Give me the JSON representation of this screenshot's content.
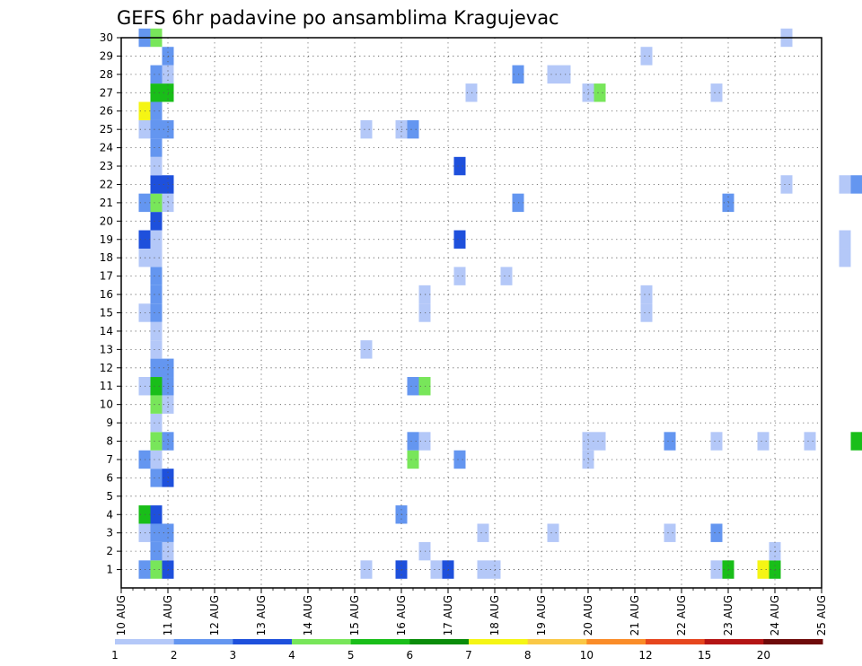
{
  "chart_data": {
    "type": "heatmap",
    "title": "GEFS 6hr padavine po ansamblima Kragujevac",
    "xlabel": "",
    "ylabel": "",
    "x_ticks": [
      "10 AUG",
      "11 AUG",
      "12 AUG",
      "13 AUG",
      "14 AUG",
      "15 AUG",
      "16 AUG",
      "17 AUG",
      "18 AUG",
      "19 AUG",
      "20 AUG",
      "21 AUG",
      "22 AUG",
      "23 AUG",
      "24 AUG",
      "25 AUG"
    ],
    "x_range_days": [
      10,
      25
    ],
    "y_ticks": [
      1,
      2,
      3,
      4,
      5,
      6,
      7,
      8,
      9,
      10,
      11,
      12,
      13,
      14,
      15,
      16,
      17,
      18,
      19,
      20,
      21,
      22,
      23,
      24,
      25,
      26,
      27,
      28,
      29,
      30
    ],
    "y_range": [
      0,
      30
    ],
    "grid": "dotted",
    "legend": {
      "placement": "bottom",
      "levels": [
        "1",
        "2",
        "3",
        "4",
        "5",
        "6",
        "7",
        "8",
        "10",
        "12",
        "15",
        "20"
      ],
      "colors": [
        "#b4c8f8",
        "#6496f0",
        "#1e50dc",
        "#78e65a",
        "#19be19",
        "#0a8c0a",
        "#f5f514",
        "#fac846",
        "#fa8c28",
        "#e6461e",
        "#b41414",
        "#6e0a0a"
      ]
    },
    "cells": [
      {
        "member": 1,
        "time": "10.5",
        "level": 2
      },
      {
        "member": 1,
        "time": "10.75",
        "level": 4
      },
      {
        "member": 1,
        "time": "11.0",
        "level": 3
      },
      {
        "member": 1,
        "time": "15.25",
        "level": 1
      },
      {
        "member": 1,
        "time": "16.0",
        "level": 3
      },
      {
        "member": 1,
        "time": "16.75",
        "level": 1
      },
      {
        "member": 1,
        "time": "17.0",
        "level": 3
      },
      {
        "member": 1,
        "time": "17.75",
        "level": 1
      },
      {
        "member": 1,
        "time": "18.0",
        "level": 1
      },
      {
        "member": 1,
        "time": "22.75",
        "level": 1
      },
      {
        "member": 1,
        "time": "23.0",
        "level": 5
      },
      {
        "member": 1,
        "time": "23.75",
        "level": 7
      },
      {
        "member": 1,
        "time": "24.0",
        "level": 5
      },
      {
        "member": 2,
        "time": "10.75",
        "level": 2
      },
      {
        "member": 2,
        "time": "11.0",
        "level": 1
      },
      {
        "member": 2,
        "time": "16.5",
        "level": 1
      },
      {
        "member": 2,
        "time": "24.0",
        "level": 1
      },
      {
        "member": 3,
        "time": "10.5",
        "level": 1
      },
      {
        "member": 3,
        "time": "10.75",
        "level": 2
      },
      {
        "member": 3,
        "time": "11.0",
        "level": 2
      },
      {
        "member": 3,
        "time": "17.75",
        "level": 1
      },
      {
        "member": 3,
        "time": "19.25",
        "level": 1
      },
      {
        "member": 3,
        "time": "21.75",
        "level": 1
      },
      {
        "member": 3,
        "time": "22.75",
        "level": 2
      },
      {
        "member": 4,
        "time": "10.5",
        "level": 5
      },
      {
        "member": 4,
        "time": "10.75",
        "level": 3
      },
      {
        "member": 4,
        "time": "16.0",
        "level": 2
      },
      {
        "member": 6,
        "time": "10.75",
        "level": 2
      },
      {
        "member": 6,
        "time": "11.0",
        "level": 3
      },
      {
        "member": 7,
        "time": "10.5",
        "level": 2
      },
      {
        "member": 7,
        "time": "10.75",
        "level": 1
      },
      {
        "member": 7,
        "time": "16.25",
        "level": 4
      },
      {
        "member": 7,
        "time": "17.25",
        "level": 2
      },
      {
        "member": 7,
        "time": "20.0",
        "level": 1
      },
      {
        "member": 8,
        "time": "10.75",
        "level": 4
      },
      {
        "member": 8,
        "time": "11.0",
        "level": 2
      },
      {
        "member": 8,
        "time": "16.25",
        "level": 2
      },
      {
        "member": 8,
        "time": "16.5",
        "level": 1
      },
      {
        "member": 8,
        "time": "20.0",
        "level": 1
      },
      {
        "member": 8,
        "time": "20.25",
        "level": 1
      },
      {
        "member": 8,
        "time": "21.75",
        "level": 2
      },
      {
        "member": 8,
        "time": "22.75",
        "level": 1
      },
      {
        "member": 8,
        "time": "23.75",
        "level": 1
      },
      {
        "member": 8,
        "time": "24.75",
        "level": 1
      },
      {
        "member": 8,
        "time": "25.75",
        "level": 5
      },
      {
        "member": 9,
        "time": "10.75",
        "level": 1
      },
      {
        "member": 10,
        "time": "10.75",
        "level": 4
      },
      {
        "member": 10,
        "time": "11.0",
        "level": 1
      },
      {
        "member": 11,
        "time": "10.5",
        "level": 1
      },
      {
        "member": 11,
        "time": "10.75",
        "level": 5
      },
      {
        "member": 11,
        "time": "11.0",
        "level": 2
      },
      {
        "member": 11,
        "time": "16.25",
        "level": 2
      },
      {
        "member": 11,
        "time": "16.5",
        "level": 4
      },
      {
        "member": 12,
        "time": "10.75",
        "level": 2
      },
      {
        "member": 12,
        "time": "11.0",
        "level": 2
      },
      {
        "member": 13,
        "time": "10.75",
        "level": 1
      },
      {
        "member": 13,
        "time": "15.25",
        "level": 1
      },
      {
        "member": 14,
        "time": "10.75",
        "level": 1
      },
      {
        "member": 15,
        "time": "10.5",
        "level": 1
      },
      {
        "member": 15,
        "time": "10.75",
        "level": 2
      },
      {
        "member": 15,
        "time": "16.5",
        "level": 1
      },
      {
        "member": 15,
        "time": "21.25",
        "level": 1
      },
      {
        "member": 16,
        "time": "10.75",
        "level": 2
      },
      {
        "member": 16,
        "time": "16.5",
        "level": 1
      },
      {
        "member": 16,
        "time": "21.25",
        "level": 1
      },
      {
        "member": 17,
        "time": "10.75",
        "level": 2
      },
      {
        "member": 17,
        "time": "17.25",
        "level": 1
      },
      {
        "member": 17,
        "time": "18.25",
        "level": 1
      },
      {
        "member": 18,
        "time": "10.5",
        "level": 1
      },
      {
        "member": 18,
        "time": "10.75",
        "level": 1
      },
      {
        "member": 18,
        "time": "25.5",
        "level": 1
      },
      {
        "member": 19,
        "time": "10.5",
        "level": 3
      },
      {
        "member": 19,
        "time": "10.75",
        "level": 1
      },
      {
        "member": 19,
        "time": "17.25",
        "level": 3
      },
      {
        "member": 19,
        "time": "25.5",
        "level": 1
      },
      {
        "member": 20,
        "time": "10.75",
        "level": 3
      },
      {
        "member": 21,
        "time": "10.5",
        "level": 2
      },
      {
        "member": 21,
        "time": "10.75",
        "level": 4
      },
      {
        "member": 21,
        "time": "11.0",
        "level": 1
      },
      {
        "member": 21,
        "time": "18.5",
        "level": 2
      },
      {
        "member": 21,
        "time": "23.0",
        "level": 2
      },
      {
        "member": 22,
        "time": "10.75",
        "level": 3
      },
      {
        "member": 22,
        "time": "11.0",
        "level": 3
      },
      {
        "member": 22,
        "time": "24.25",
        "level": 1
      },
      {
        "member": 22,
        "time": "25.5",
        "level": 1
      },
      {
        "member": 22,
        "time": "25.75",
        "level": 2
      },
      {
        "member": 23,
        "time": "10.75",
        "level": 1
      },
      {
        "member": 23,
        "time": "17.25",
        "level": 3
      },
      {
        "member": 24,
        "time": "10.75",
        "level": 2
      },
      {
        "member": 25,
        "time": "10.5",
        "level": 1
      },
      {
        "member": 25,
        "time": "10.75",
        "level": 2
      },
      {
        "member": 25,
        "time": "11.0",
        "level": 2
      },
      {
        "member": 25,
        "time": "15.25",
        "level": 1
      },
      {
        "member": 25,
        "time": "16.0",
        "level": 1
      },
      {
        "member": 25,
        "time": "16.25",
        "level": 2
      },
      {
        "member": 26,
        "time": "10.5",
        "level": 7
      },
      {
        "member": 26,
        "time": "10.75",
        "level": 2
      },
      {
        "member": 27,
        "time": "10.75",
        "level": 5
      },
      {
        "member": 27,
        "time": "11.0",
        "level": 5
      },
      {
        "member": 27,
        "time": "17.5",
        "level": 1
      },
      {
        "member": 27,
        "time": "20.0",
        "level": 1
      },
      {
        "member": 27,
        "time": "20.25",
        "level": 4
      },
      {
        "member": 27,
        "time": "22.75",
        "level": 1
      },
      {
        "member": 28,
        "time": "10.75",
        "level": 2
      },
      {
        "member": 28,
        "time": "11.0",
        "level": 1
      },
      {
        "member": 28,
        "time": "18.5",
        "level": 2
      },
      {
        "member": 28,
        "time": "19.25",
        "level": 1
      },
      {
        "member": 28,
        "time": "19.5",
        "level": 1
      },
      {
        "member": 29,
        "time": "11.0",
        "level": 2
      },
      {
        "member": 29,
        "time": "21.25",
        "level": 1
      },
      {
        "member": 30,
        "time": "10.5",
        "level": 2
      },
      {
        "member": 30,
        "time": "10.75",
        "level": 4
      },
      {
        "member": 30,
        "time": "24.25",
        "level": 1
      }
    ]
  }
}
